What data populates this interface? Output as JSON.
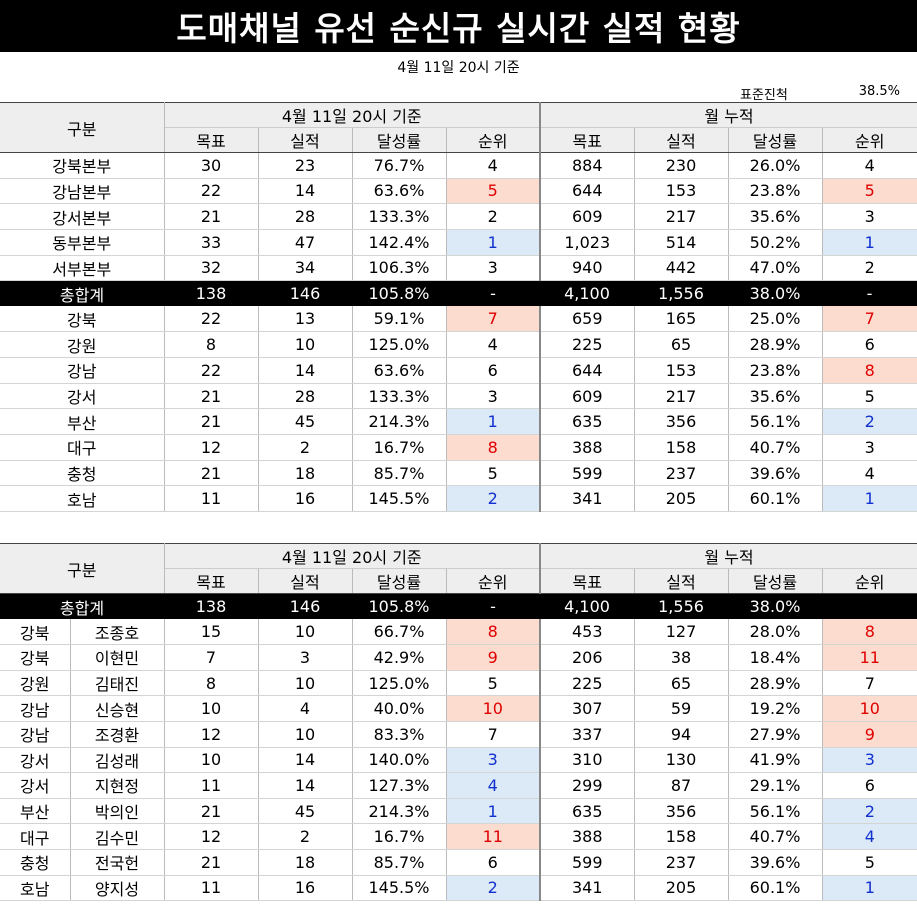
{
  "title": "도매채널 유선 순신규 실시간 실적 현황",
  "subtitle": "4월 11일 20시 기준",
  "standard_progress": {
    "label": "표준진척",
    "value": "38.5%"
  },
  "header": {
    "category": "구분",
    "group_daily": "4월 11일 20시 기준",
    "group_monthly": "월 누적",
    "cols": [
      "목표",
      "실적",
      "달성률",
      "순위"
    ]
  },
  "table1": {
    "rows": [
      {
        "name": "강북본부",
        "d": [
          "30",
          "23",
          "76.7%",
          "4"
        ],
        "dh": "",
        "m": [
          "884",
          "230",
          "26.0%",
          "4"
        ],
        "mh": ""
      },
      {
        "name": "강남본부",
        "d": [
          "22",
          "14",
          "63.6%",
          "5"
        ],
        "dh": "red",
        "m": [
          "644",
          "153",
          "23.8%",
          "5"
        ],
        "mh": "red"
      },
      {
        "name": "강서본부",
        "d": [
          "21",
          "28",
          "133.3%",
          "2"
        ],
        "dh": "",
        "m": [
          "609",
          "217",
          "35.6%",
          "3"
        ],
        "mh": ""
      },
      {
        "name": "동부본부",
        "d": [
          "33",
          "47",
          "142.4%",
          "1"
        ],
        "dh": "blue",
        "m": [
          "1,023",
          "514",
          "50.2%",
          "1"
        ],
        "mh": "blue"
      },
      {
        "name": "서부본부",
        "d": [
          "32",
          "34",
          "106.3%",
          "3"
        ],
        "dh": "",
        "m": [
          "940",
          "442",
          "47.0%",
          "2"
        ],
        "mh": ""
      }
    ],
    "total": {
      "name": "총합계",
      "d": [
        "138",
        "146",
        "105.8%",
        "-"
      ],
      "m": [
        "4,100",
        "1,556",
        "38.0%",
        "-"
      ]
    },
    "rows2": [
      {
        "name": "강북",
        "d": [
          "22",
          "13",
          "59.1%",
          "7"
        ],
        "dh": "red",
        "m": [
          "659",
          "165",
          "25.0%",
          "7"
        ],
        "mh": "red"
      },
      {
        "name": "강원",
        "d": [
          "8",
          "10",
          "125.0%",
          "4"
        ],
        "dh": "",
        "m": [
          "225",
          "65",
          "28.9%",
          "6"
        ],
        "mh": ""
      },
      {
        "name": "강남",
        "d": [
          "22",
          "14",
          "63.6%",
          "6"
        ],
        "dh": "",
        "m": [
          "644",
          "153",
          "23.8%",
          "8"
        ],
        "mh": "red"
      },
      {
        "name": "강서",
        "d": [
          "21",
          "28",
          "133.3%",
          "3"
        ],
        "dh": "",
        "m": [
          "609",
          "217",
          "35.6%",
          "5"
        ],
        "mh": ""
      },
      {
        "name": "부산",
        "d": [
          "21",
          "45",
          "214.3%",
          "1"
        ],
        "dh": "blue",
        "m": [
          "635",
          "356",
          "56.1%",
          "2"
        ],
        "mh": "blue"
      },
      {
        "name": "대구",
        "d": [
          "12",
          "2",
          "16.7%",
          "8"
        ],
        "dh": "red",
        "m": [
          "388",
          "158",
          "40.7%",
          "3"
        ],
        "mh": ""
      },
      {
        "name": "충청",
        "d": [
          "21",
          "18",
          "85.7%",
          "5"
        ],
        "dh": "",
        "m": [
          "599",
          "237",
          "39.6%",
          "4"
        ],
        "mh": ""
      },
      {
        "name": "호남",
        "d": [
          "11",
          "16",
          "145.5%",
          "2"
        ],
        "dh": "blue",
        "m": [
          "341",
          "205",
          "60.1%",
          "1"
        ],
        "mh": "blue"
      }
    ]
  },
  "table2": {
    "total": {
      "name": "총합계",
      "d": [
        "138",
        "146",
        "105.8%",
        "-"
      ],
      "m": [
        "4,100",
        "1,556",
        "38.0%",
        ""
      ]
    },
    "rows": [
      {
        "region": "강북",
        "person": "조종호",
        "d": [
          "15",
          "10",
          "66.7%",
          "8"
        ],
        "dh": "red",
        "m": [
          "453",
          "127",
          "28.0%",
          "8"
        ],
        "mh": "red"
      },
      {
        "region": "강북",
        "person": "이현민",
        "d": [
          "7",
          "3",
          "42.9%",
          "9"
        ],
        "dh": "red",
        "m": [
          "206",
          "38",
          "18.4%",
          "11"
        ],
        "mh": "red"
      },
      {
        "region": "강원",
        "person": "김태진",
        "d": [
          "8",
          "10",
          "125.0%",
          "5"
        ],
        "dh": "",
        "m": [
          "225",
          "65",
          "28.9%",
          "7"
        ],
        "mh": ""
      },
      {
        "region": "강남",
        "person": "신승현",
        "d": [
          "10",
          "4",
          "40.0%",
          "10"
        ],
        "dh": "red",
        "m": [
          "307",
          "59",
          "19.2%",
          "10"
        ],
        "mh": "red"
      },
      {
        "region": "강남",
        "person": "조경환",
        "d": [
          "12",
          "10",
          "83.3%",
          "7"
        ],
        "dh": "",
        "m": [
          "337",
          "94",
          "27.9%",
          "9"
        ],
        "mh": "red"
      },
      {
        "region": "강서",
        "person": "김성래",
        "d": [
          "10",
          "14",
          "140.0%",
          "3"
        ],
        "dh": "blue",
        "m": [
          "310",
          "130",
          "41.9%",
          "3"
        ],
        "mh": "blue"
      },
      {
        "region": "강서",
        "person": "지현정",
        "d": [
          "11",
          "14",
          "127.3%",
          "4"
        ],
        "dh": "blue",
        "m": [
          "299",
          "87",
          "29.1%",
          "6"
        ],
        "mh": ""
      },
      {
        "region": "부산",
        "person": "박의인",
        "d": [
          "21",
          "45",
          "214.3%",
          "1"
        ],
        "dh": "blue",
        "m": [
          "635",
          "356",
          "56.1%",
          "2"
        ],
        "mh": "blue"
      },
      {
        "region": "대구",
        "person": "김수민",
        "d": [
          "12",
          "2",
          "16.7%",
          "11"
        ],
        "dh": "red",
        "m": [
          "388",
          "158",
          "40.7%",
          "4"
        ],
        "mh": "blue"
      },
      {
        "region": "충청",
        "person": "전국헌",
        "d": [
          "21",
          "18",
          "85.7%",
          "6"
        ],
        "dh": "",
        "m": [
          "599",
          "237",
          "39.6%",
          "5"
        ],
        "mh": ""
      },
      {
        "region": "호남",
        "person": "양지성",
        "d": [
          "11",
          "16",
          "145.5%",
          "2"
        ],
        "dh": "blue",
        "m": [
          "341",
          "205",
          "60.1%",
          "1"
        ],
        "mh": "blue"
      }
    ]
  },
  "colors": {
    "rank_low_bg": "#fbdccf",
    "rank_low_text": "#e00000",
    "rank_high_bg": "#dce9f6",
    "rank_high_text": "#1030d0",
    "title_bg": "#000000"
  }
}
